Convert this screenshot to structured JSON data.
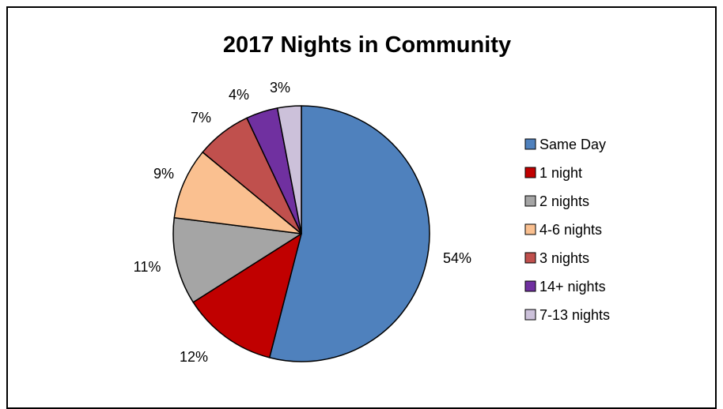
{
  "chart_data": {
    "type": "pie",
    "title": "2017 Nights in Community",
    "start_angle_deg": 0,
    "direction": "clockwise",
    "slices": [
      {
        "label": "Same Day",
        "value": 54,
        "display": "54%",
        "color": "#4f81bd"
      },
      {
        "label": "1 night",
        "value": 12,
        "display": "12%",
        "color": "#c00000"
      },
      {
        "label": "2 nights",
        "value": 11,
        "display": "11%",
        "color": "#a5a5a5"
      },
      {
        "label": "4-6 nights",
        "value": 9,
        "display": "9%",
        "color": "#fac090"
      },
      {
        "label": "3 nights",
        "value": 7,
        "display": "7%",
        "color": "#c0504d"
      },
      {
        "label": "14+ nights",
        "value": 4,
        "display": "4%",
        "color": "#7030a0"
      },
      {
        "label": "7-13 nights",
        "value": 3,
        "display": "3%",
        "color": "#ccc1da"
      }
    ],
    "legend": {
      "position": "right",
      "order": [
        "Same Day",
        "1 night",
        "2 nights",
        "4-6 nights",
        "3 nights",
        "14+ nights",
        "7-13 nights"
      ]
    }
  }
}
